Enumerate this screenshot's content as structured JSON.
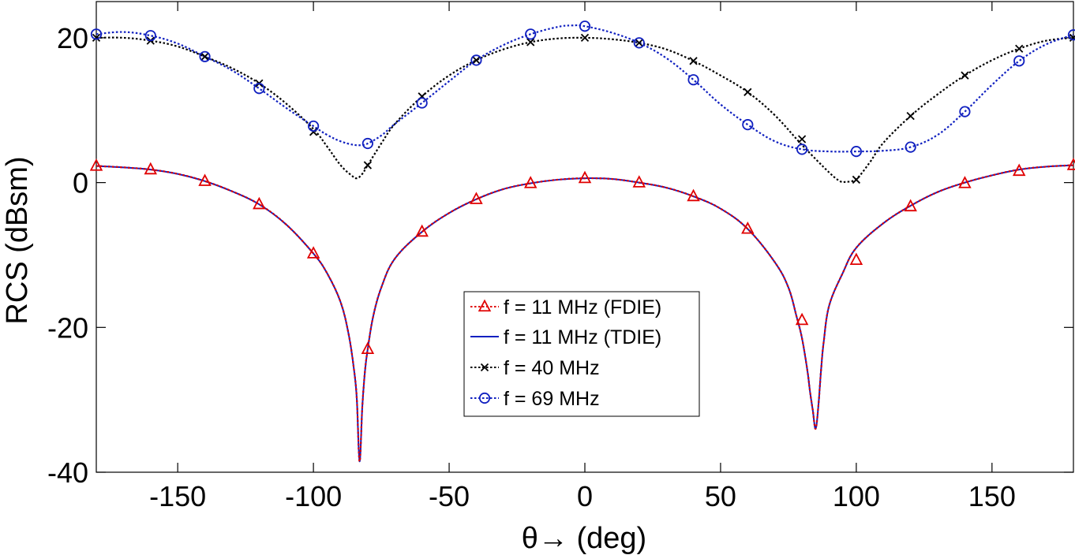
{
  "chart_data": {
    "type": "line",
    "title": "",
    "xlabel": "θ→ (deg)",
    "ylabel": "RCS (dBsm)",
    "xlim": [
      -180,
      180
    ],
    "ylim": [
      -40,
      25
    ],
    "xticks": [
      -150,
      -100,
      -50,
      0,
      50,
      100,
      150
    ],
    "xtick_labels": [
      "-150",
      "-100",
      "-50",
      "0",
      "50",
      "100",
      "150"
    ],
    "yticks": [
      -40,
      -20,
      0,
      20
    ],
    "ytick_labels": [
      "-40",
      "-20",
      "0",
      "20"
    ],
    "grid": false,
    "legend_position": "center",
    "series": [
      {
        "name": "f = 11 MHz (FDIE)",
        "color": "#e00000",
        "line_style": "dotted",
        "marker": "triangle",
        "x": [
          -180,
          -170,
          -160,
          -150,
          -140,
          -130,
          -120,
          -110,
          -100,
          -95,
          -90,
          -87,
          -85,
          -84,
          -83,
          -82,
          -81,
          -80,
          -78,
          -75,
          -70,
          -60,
          -50,
          -40,
          -30,
          -20,
          -10,
          0,
          10,
          20,
          30,
          40,
          50,
          60,
          70,
          75,
          78,
          80,
          82,
          83,
          84,
          85,
          86,
          87,
          88,
          90,
          95,
          100,
          110,
          120,
          130,
          140,
          150,
          160,
          170,
          180
        ],
        "y": [
          2.3,
          2.1,
          1.8,
          1.2,
          0.2,
          -1.2,
          -3.0,
          -5.8,
          -9.8,
          -12.5,
          -16.5,
          -21.0,
          -26.0,
          -30.0,
          -38.5,
          -31.0,
          -26.0,
          -23.0,
          -18.5,
          -14.5,
          -10.5,
          -6.8,
          -4.2,
          -2.3,
          -0.9,
          -0.1,
          0.4,
          0.6,
          0.5,
          0.0,
          -0.7,
          -1.9,
          -3.6,
          -6.4,
          -11.0,
          -14.5,
          -18.5,
          -21.5,
          -26.0,
          -29.0,
          -31.5,
          -34.0,
          -31.0,
          -26.0,
          -22.0,
          -17.0,
          -12.5,
          -9.0,
          -5.6,
          -3.2,
          -1.3,
          0.0,
          1.0,
          1.8,
          2.2,
          2.4
        ],
        "marker_x": [
          -180,
          -160,
          -140,
          -120,
          -100,
          -80,
          -60,
          -40,
          -20,
          0,
          20,
          40,
          60,
          80,
          100,
          120,
          140,
          160,
          180
        ],
        "marker_y": [
          2.3,
          1.8,
          0.2,
          -3.0,
          -9.8,
          -23.0,
          -6.8,
          -2.3,
          -0.1,
          0.6,
          0.0,
          -1.9,
          -6.4,
          -19.0,
          -10.7,
          -3.3,
          -0.1,
          1.6,
          2.4
        ]
      },
      {
        "name": "f = 11 MHz (TDIE)",
        "color": "#1020c0",
        "line_style": "solid",
        "marker": "none",
        "x": [
          -180,
          -170,
          -160,
          -150,
          -140,
          -130,
          -120,
          -110,
          -100,
          -95,
          -90,
          -87,
          -85,
          -84,
          -83,
          -82,
          -81,
          -80,
          -78,
          -75,
          -70,
          -60,
          -50,
          -40,
          -30,
          -20,
          -10,
          0,
          10,
          20,
          30,
          40,
          50,
          60,
          70,
          75,
          78,
          80,
          82,
          83,
          84,
          85,
          86,
          87,
          88,
          90,
          95,
          100,
          110,
          120,
          130,
          140,
          150,
          160,
          170,
          180
        ],
        "y": [
          2.3,
          2.1,
          1.8,
          1.2,
          0.2,
          -1.2,
          -3.0,
          -5.8,
          -9.8,
          -12.5,
          -16.5,
          -21.0,
          -26.0,
          -30.0,
          -38.5,
          -31.0,
          -26.0,
          -23.0,
          -18.5,
          -14.5,
          -10.5,
          -6.8,
          -4.2,
          -2.3,
          -0.9,
          -0.1,
          0.4,
          0.6,
          0.5,
          0.0,
          -0.7,
          -1.9,
          -3.6,
          -6.4,
          -11.0,
          -14.5,
          -18.5,
          -21.5,
          -26.0,
          -29.0,
          -31.5,
          -34.0,
          -31.0,
          -26.0,
          -22.0,
          -17.0,
          -12.5,
          -9.0,
          -5.6,
          -3.2,
          -1.3,
          0.0,
          1.0,
          1.8,
          2.2,
          2.4
        ]
      },
      {
        "name": "f = 40 MHz",
        "color": "#000000",
        "line_style": "dotted",
        "marker": "x",
        "x": [
          -180,
          -170,
          -160,
          -150,
          -140,
          -130,
          -120,
          -110,
          -100,
          -95,
          -90,
          -86,
          -84,
          -82,
          -80,
          -75,
          -70,
          -60,
          -50,
          -40,
          -30,
          -20,
          -10,
          0,
          10,
          20,
          30,
          40,
          50,
          60,
          70,
          80,
          90,
          94,
          96,
          100,
          105,
          110,
          120,
          130,
          140,
          150,
          160,
          170,
          180
        ],
        "y": [
          20.0,
          20.0,
          19.6,
          18.8,
          17.4,
          15.8,
          13.7,
          10.9,
          7.4,
          5.0,
          2.4,
          1.0,
          0.6,
          1.2,
          2.4,
          5.4,
          8.1,
          11.9,
          14.8,
          16.9,
          18.4,
          19.4,
          19.9,
          20.0,
          19.8,
          19.3,
          18.4,
          16.8,
          14.8,
          12.5,
          9.3,
          5.2,
          1.4,
          0.2,
          0.1,
          0.5,
          2.8,
          5.5,
          9.2,
          12.2,
          14.8,
          16.9,
          18.5,
          19.6,
          20.0
        ],
        "marker_x": [
          -180,
          -160,
          -140,
          -120,
          -100,
          -80,
          -60,
          -40,
          -20,
          0,
          20,
          40,
          60,
          80,
          100,
          120,
          140,
          160,
          180
        ],
        "marker_y": [
          20.0,
          19.6,
          17.4,
          13.7,
          7.0,
          2.4,
          11.9,
          16.9,
          19.4,
          20.0,
          19.3,
          16.8,
          12.5,
          6.0,
          0.4,
          9.2,
          14.8,
          18.5,
          20.0
        ]
      },
      {
        "name": "f = 69 MHz",
        "color": "#1020c0",
        "line_style": "dotted",
        "marker": "circle",
        "x": [
          -180,
          -170,
          -160,
          -150,
          -140,
          -130,
          -120,
          -110,
          -100,
          -95,
          -90,
          -85,
          -82,
          -80,
          -75,
          -70,
          -60,
          -50,
          -40,
          -30,
          -20,
          -10,
          -5,
          0,
          10,
          20,
          30,
          40,
          50,
          60,
          70,
          80,
          90,
          100,
          110,
          120,
          130,
          140,
          150,
          160,
          170,
          180
        ],
        "y": [
          20.5,
          20.8,
          20.3,
          19.2,
          17.4,
          15.5,
          13.0,
          10.3,
          7.8,
          6.6,
          5.7,
          5.2,
          5.2,
          5.4,
          6.5,
          8.1,
          11.0,
          14.0,
          16.9,
          19.0,
          20.5,
          21.5,
          21.7,
          21.6,
          20.7,
          19.3,
          17.2,
          14.2,
          10.8,
          8.0,
          5.7,
          4.6,
          4.3,
          4.3,
          4.4,
          4.9,
          6.6,
          9.8,
          13.5,
          16.8,
          19.1,
          20.4
        ],
        "marker_x": [
          -180,
          -160,
          -140,
          -120,
          -100,
          -80,
          -60,
          -40,
          -20,
          0,
          20,
          40,
          60,
          80,
          100,
          120,
          140,
          160,
          180
        ],
        "marker_y": [
          20.5,
          20.3,
          17.4,
          13.0,
          7.8,
          5.4,
          11.0,
          16.9,
          20.5,
          21.6,
          19.3,
          14.2,
          8.0,
          4.6,
          4.3,
          4.9,
          9.8,
          16.8,
          20.4
        ]
      }
    ],
    "legend": [
      "f = 11 MHz (FDIE)",
      "f = 11 MHz (TDIE)",
      "f = 40 MHz",
      "f = 69 MHz"
    ]
  }
}
